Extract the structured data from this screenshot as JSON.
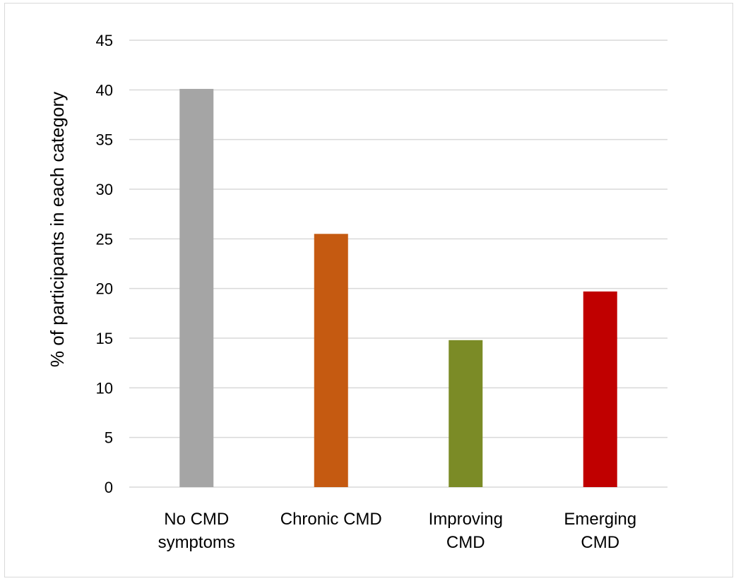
{
  "chart_data": {
    "type": "bar",
    "title": "",
    "xlabel": "",
    "ylabel": "% of participants in each category",
    "categories": [
      [
        "No CMD",
        "symptoms"
      ],
      [
        "Chronic CMD"
      ],
      [
        "Improving",
        "CMD"
      ],
      [
        "Emerging",
        "CMD"
      ]
    ],
    "values": [
      40.1,
      25.5,
      14.8,
      19.7
    ],
    "colors": [
      "#a5a5a5",
      "#c55a11",
      "#7b8b26",
      "#c00000"
    ],
    "ylim": [
      0,
      45
    ],
    "yticks": [
      "0",
      "5",
      "10",
      "15",
      "20",
      "25",
      "30",
      "35",
      "40",
      "45"
    ],
    "grid": true,
    "gridline_color": "#d9d9d9",
    "legend": "none"
  }
}
